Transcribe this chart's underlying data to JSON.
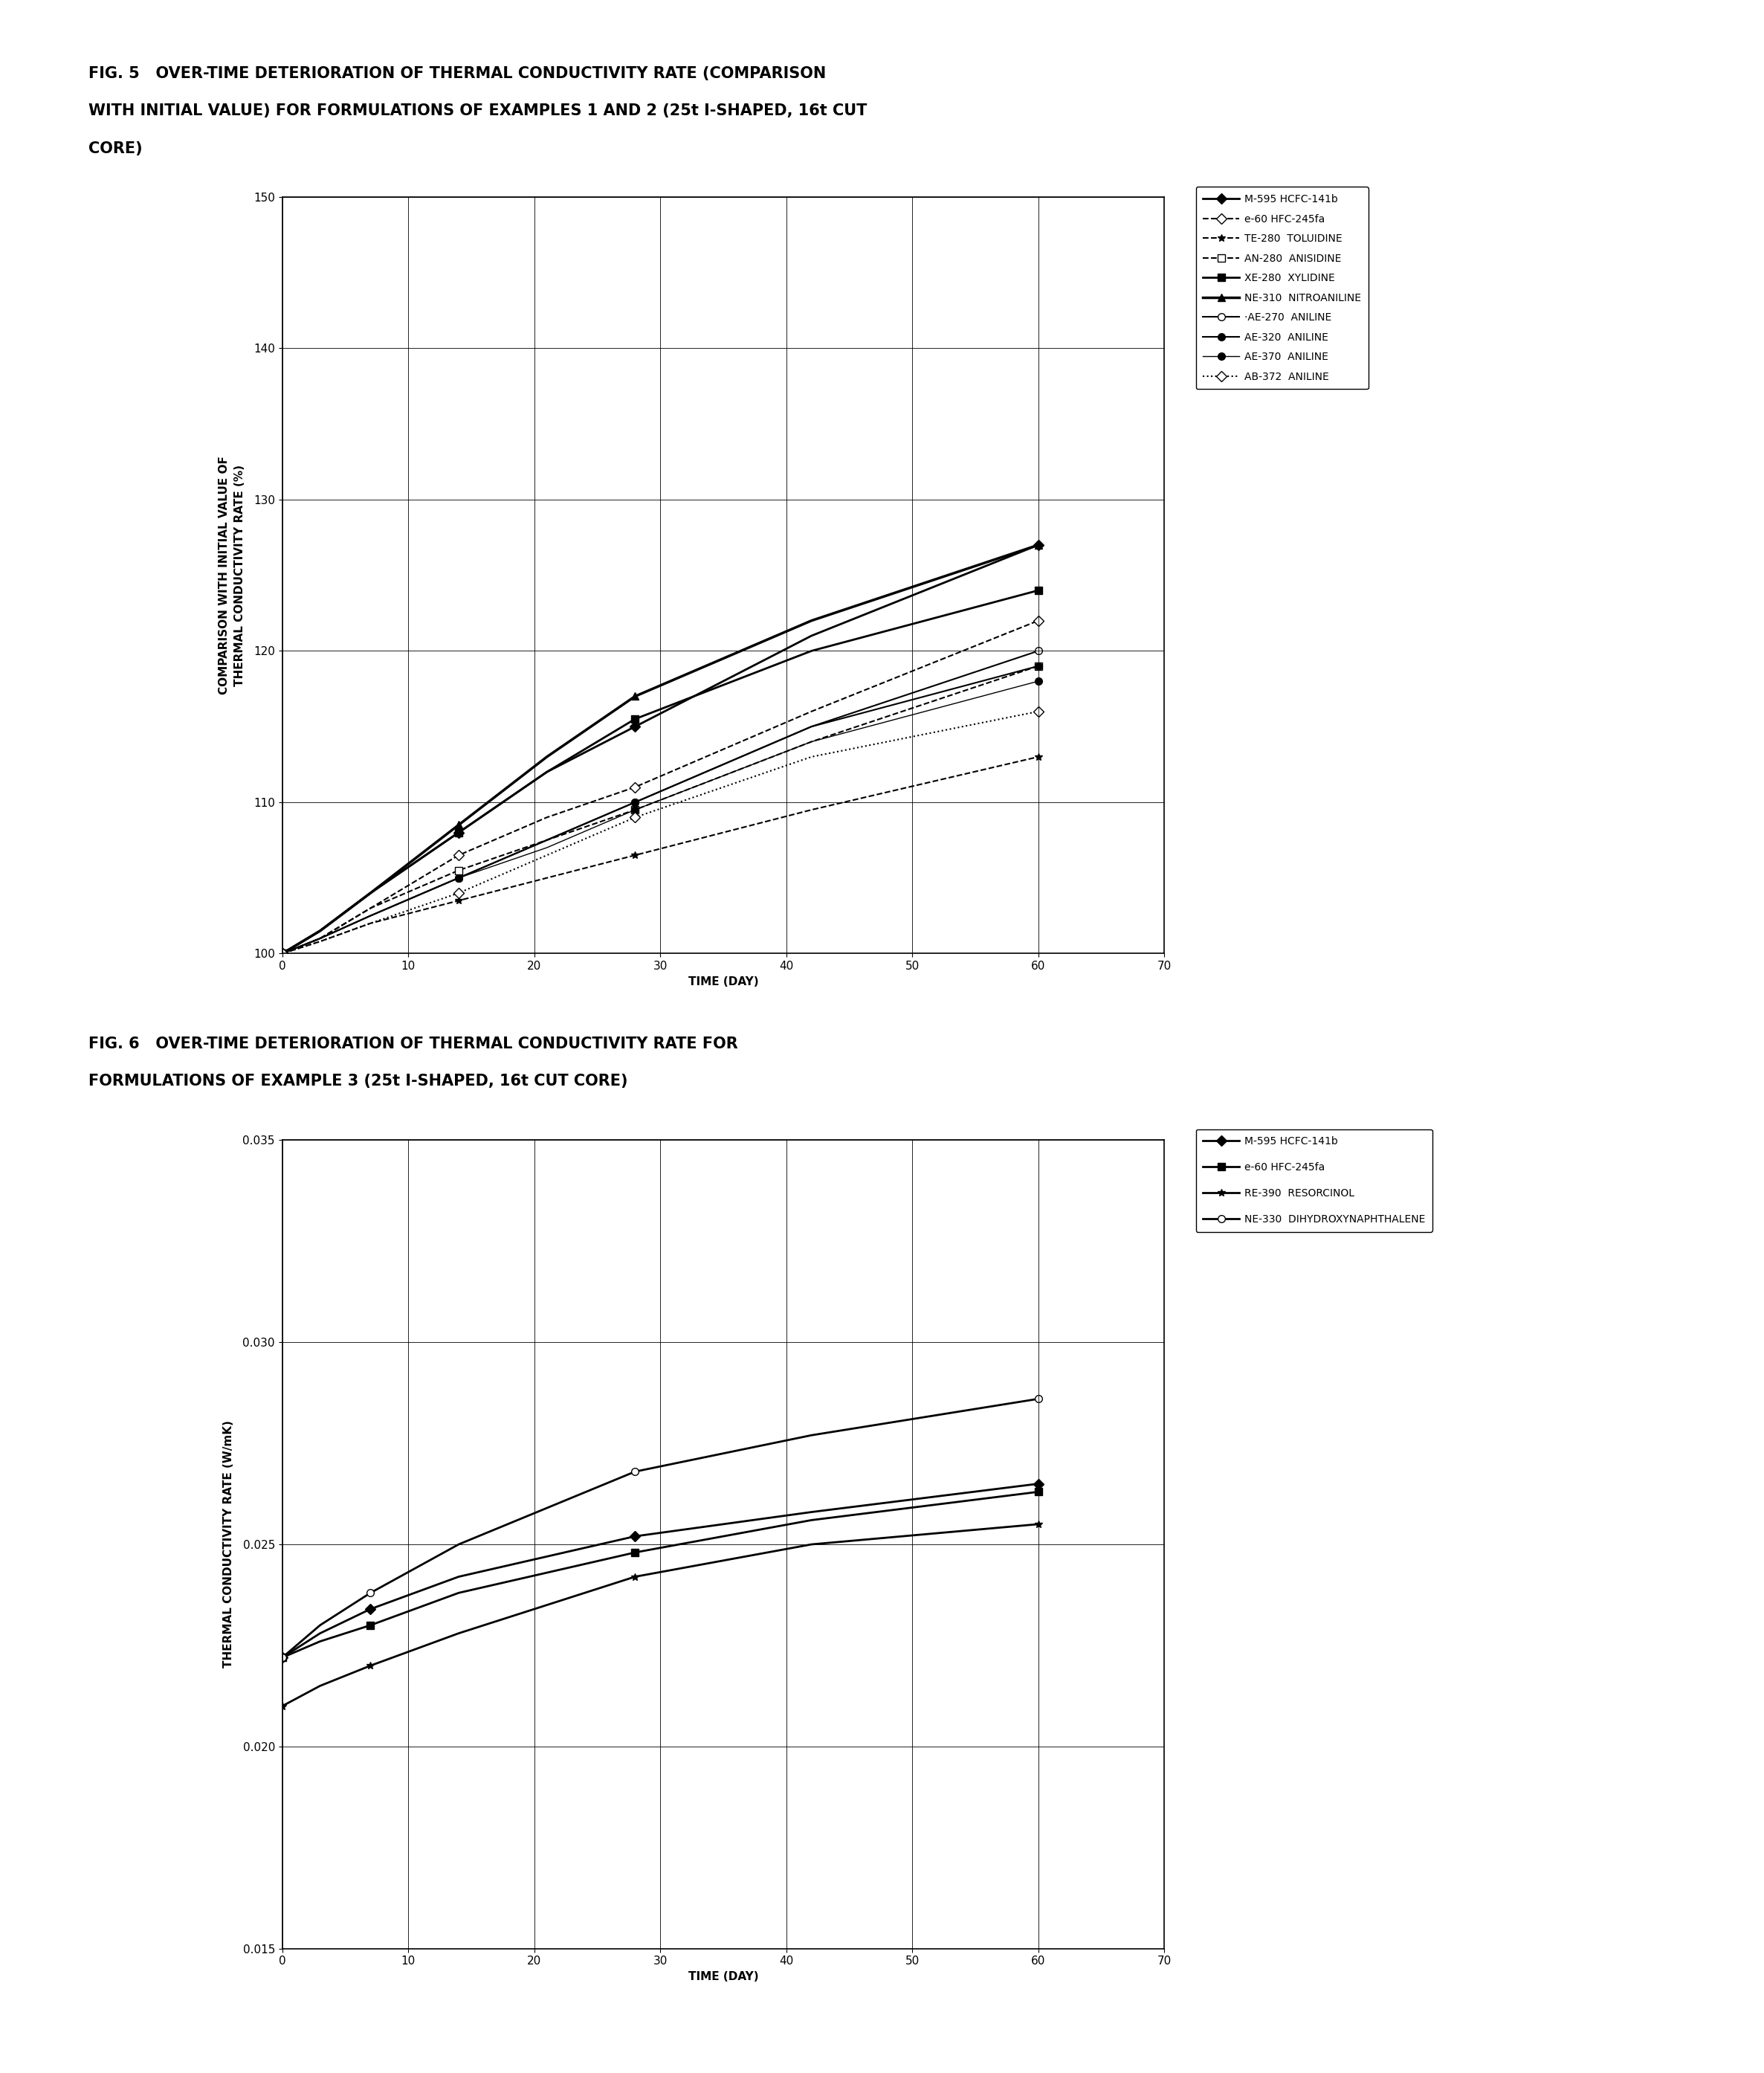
{
  "fig5_title_line1": "FIG. 5   OVER-TIME DETERIORATION OF THERMAL CONDUCTIVITY RATE (COMPARISON",
  "fig5_title_line2": "WITH INITIAL VALUE) FOR FORMULATIONS OF EXAMPLES 1 AND 2 (25t I-SHAPED, 16t CUT",
  "fig5_title_line3": "CORE)",
  "fig6_title_line1": "FIG. 6   OVER-TIME DETERIORATION OF THERMAL CONDUCTIVITY RATE FOR",
  "fig6_title_line2": "FORMULATIONS OF EXAMPLE 3 (25t I-SHAPED, 16t CUT CORE)",
  "fig5_xlabel": "TIME (DAY)",
  "fig5_ylabel": "COMPARISON WITH INITIAL VALUE OF\nTHERMAL CONDUCTIVITY RATE (%)",
  "fig6_xlabel": "TIME (DAY)",
  "fig6_ylabel": "THERMAL CONDUCTIVITY RATE (W/mK)",
  "fig5_xlim": [
    0,
    70
  ],
  "fig5_ylim": [
    100,
    150
  ],
  "fig5_xticks": [
    0,
    10,
    20,
    30,
    40,
    50,
    60,
    70
  ],
  "fig5_yticks": [
    100,
    110,
    120,
    130,
    140,
    150
  ],
  "fig6_xlim": [
    0,
    70
  ],
  "fig6_ylim": [
    0.015,
    0.035
  ],
  "fig6_xticks": [
    0,
    10,
    20,
    30,
    40,
    50,
    60,
    70
  ],
  "fig6_yticks": [
    0.015,
    0.02,
    0.025,
    0.03,
    0.035
  ],
  "series5": [
    {
      "label": "M-595 HCFC-141b",
      "x": [
        0,
        3,
        7,
        14,
        21,
        28,
        42,
        60
      ],
      "y": [
        100,
        101.5,
        104,
        108,
        112,
        115,
        121,
        127
      ],
      "color": "black",
      "linestyle": "-",
      "marker": "D",
      "markerfacecolor": "black",
      "linewidth": 2.0,
      "markerindices": [
        0,
        3,
        5,
        7
      ]
    },
    {
      "label": "e-60 HFC-245fa",
      "x": [
        0,
        3,
        7,
        14,
        21,
        28,
        42,
        60
      ],
      "y": [
        100,
        101,
        103,
        106.5,
        109,
        111,
        116,
        122
      ],
      "color": "black",
      "linestyle": "--",
      "marker": "D",
      "markerfacecolor": "white",
      "linewidth": 1.5,
      "markerindices": [
        0,
        3,
        5,
        7
      ]
    },
    {
      "label": "TE-280  TOLUIDINE",
      "x": [
        0,
        3,
        7,
        14,
        21,
        28,
        42,
        60
      ],
      "y": [
        100,
        100.8,
        102,
        103.5,
        105,
        106.5,
        109.5,
        113
      ],
      "color": "black",
      "linestyle": "--",
      "marker": "*",
      "markerfacecolor": "black",
      "linewidth": 1.5,
      "markerindices": [
        0,
        3,
        5,
        7
      ]
    },
    {
      "label": "AN-280  ANISIDINE",
      "x": [
        0,
        3,
        7,
        14,
        21,
        28,
        42,
        60
      ],
      "y": [
        100,
        101,
        103,
        105.5,
        107.5,
        109.5,
        114,
        119
      ],
      "color": "black",
      "linestyle": "--",
      "marker": "s",
      "markerfacecolor": "white",
      "linewidth": 1.5,
      "markerindices": [
        0,
        3,
        5,
        7
      ]
    },
    {
      "label": "XE-280  XYLIDINE",
      "x": [
        0,
        3,
        7,
        14,
        21,
        28,
        42,
        60
      ],
      "y": [
        100,
        101.5,
        104,
        108,
        112,
        115.5,
        120,
        124
      ],
      "color": "black",
      "linestyle": "-",
      "marker": "s",
      "markerfacecolor": "black",
      "linewidth": 2.0,
      "markerindices": [
        0,
        3,
        5,
        7
      ]
    },
    {
      "label": "NE-310  NITROANILINE",
      "x": [
        0,
        3,
        7,
        14,
        21,
        28,
        42,
        60
      ],
      "y": [
        100,
        101.5,
        104,
        108.5,
        113,
        117,
        122,
        127
      ],
      "color": "black",
      "linestyle": "-",
      "marker": "^",
      "markerfacecolor": "black",
      "linewidth": 2.5,
      "markerindices": [
        0,
        3,
        5,
        7
      ]
    },
    {
      "label": "·AE-270  ANILINE",
      "x": [
        0,
        3,
        7,
        14,
        21,
        28,
        42,
        60
      ],
      "y": [
        100,
        101,
        102.5,
        105,
        107.5,
        110,
        115,
        120
      ],
      "color": "black",
      "linestyle": "-",
      "marker": "o",
      "markerfacecolor": "white",
      "linewidth": 1.5,
      "markerindices": [
        0,
        3,
        5,
        7
      ]
    },
    {
      "label": "AE-320  ANILINE",
      "x": [
        0,
        3,
        7,
        14,
        21,
        28,
        42,
        60
      ],
      "y": [
        100,
        101,
        102.5,
        105,
        107.5,
        110,
        115,
        119
      ],
      "color": "black",
      "linestyle": "-",
      "marker": "o",
      "markerfacecolor": "black",
      "linewidth": 1.5,
      "markerindices": [
        0,
        3,
        5,
        7
      ]
    },
    {
      "label": "AE-370  ANILINE",
      "x": [
        0,
        3,
        7,
        14,
        21,
        28,
        42,
        60
      ],
      "y": [
        100,
        101,
        102.5,
        105,
        107,
        109.5,
        114,
        118
      ],
      "color": "black",
      "linestyle": "-",
      "marker": "o",
      "markerfacecolor": "black",
      "linewidth": 1.0,
      "markerindices": [
        0,
        3,
        5,
        7
      ]
    },
    {
      "label": "AB-372  ANILINE",
      "x": [
        0,
        3,
        7,
        14,
        21,
        28,
        42,
        60
      ],
      "y": [
        100,
        100.8,
        102,
        104,
        106.5,
        109,
        113,
        116
      ],
      "color": "black",
      "linestyle": ":",
      "marker": "D",
      "markerfacecolor": "white",
      "linewidth": 1.5,
      "markerindices": [
        0,
        3,
        5,
        7
      ]
    }
  ],
  "series6": [
    {
      "label": "M-595 HCFC-141b",
      "x": [
        0,
        3,
        7,
        14,
        28,
        42,
        60
      ],
      "y": [
        0.0222,
        0.0228,
        0.0234,
        0.0242,
        0.0252,
        0.0258,
        0.0265
      ],
      "color": "black",
      "linestyle": "-",
      "marker": "D",
      "markerfacecolor": "black",
      "linewidth": 2.0,
      "markerindices": [
        0,
        2,
        4,
        6
      ]
    },
    {
      "label": "e-60 HFC-245fa",
      "x": [
        0,
        3,
        7,
        14,
        28,
        42,
        60
      ],
      "y": [
        0.0222,
        0.0226,
        0.023,
        0.0238,
        0.0248,
        0.0256,
        0.0263
      ],
      "color": "black",
      "linestyle": "-",
      "marker": "s",
      "markerfacecolor": "black",
      "linewidth": 2.0,
      "markerindices": [
        0,
        2,
        4,
        6
      ]
    },
    {
      "label": "RE-390  RESORCINOL",
      "x": [
        0,
        3,
        7,
        14,
        28,
        42,
        60
      ],
      "y": [
        0.021,
        0.0215,
        0.022,
        0.0228,
        0.0242,
        0.025,
        0.0255
      ],
      "color": "black",
      "linestyle": "-",
      "marker": "*",
      "markerfacecolor": "black",
      "linewidth": 2.0,
      "markerindices": [
        0,
        2,
        4,
        6
      ]
    },
    {
      "label": "NE-330  DIHYDROXYNAPHTHALENE",
      "x": [
        0,
        3,
        7,
        14,
        28,
        42,
        60
      ],
      "y": [
        0.0222,
        0.023,
        0.0238,
        0.025,
        0.0268,
        0.0277,
        0.0286
      ],
      "color": "black",
      "linestyle": "-",
      "marker": "o",
      "markerfacecolor": "white",
      "linewidth": 2.0,
      "markerindices": [
        0,
        2,
        4,
        6
      ]
    }
  ],
  "background_color": "white",
  "text_color": "black",
  "title_fontsize": 15,
  "label_fontsize": 11,
  "tick_fontsize": 11,
  "legend_fontsize": 10
}
